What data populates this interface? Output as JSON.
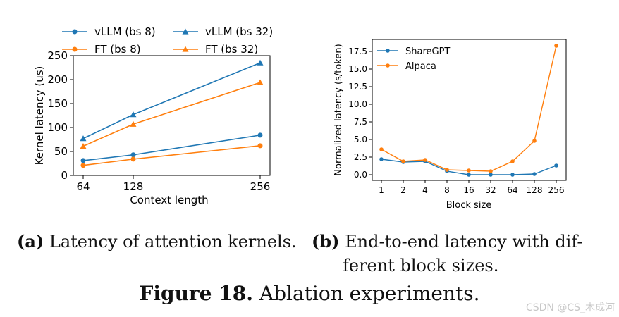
{
  "chart_data": [
    {
      "type": "line",
      "title": "",
      "xlabel": "Context length",
      "ylabel": "Kernel latency (us)",
      "categories": [
        "64",
        "128",
        "256"
      ],
      "x": [
        64,
        128,
        256
      ],
      "ylim": [
        0,
        250
      ],
      "yticks": [
        0,
        50,
        100,
        150,
        200,
        250
      ],
      "legend": "top, 2 columns",
      "series": [
        {
          "name": "vLLM (bs 8)",
          "color": "#1f77b4",
          "marker": "circle",
          "values": [
            31,
            43,
            84
          ]
        },
        {
          "name": "FT (bs 8)",
          "color": "#ff7f0e",
          "marker": "circle",
          "values": [
            21,
            34,
            62
          ]
        },
        {
          "name": "vLLM (bs 32)",
          "color": "#1f77b4",
          "marker": "triangle",
          "values": [
            77,
            127,
            235
          ]
        },
        {
          "name": "FT (bs 32)",
          "color": "#ff7f0e",
          "marker": "triangle",
          "values": [
            61,
            107,
            194
          ]
        }
      ]
    },
    {
      "type": "line",
      "title": "",
      "xlabel": "Block size",
      "ylabel": "Normalized latency (s/token)",
      "categories": [
        "1",
        "2",
        "4",
        "8",
        "16",
        "32",
        "64",
        "128",
        "256"
      ],
      "ylim": [
        -0.8,
        19.2
      ],
      "yticks": [
        "0.0",
        "2.5",
        "5.0",
        "7.5",
        "10.0",
        "12.5",
        "15.0",
        "17.5"
      ],
      "legend": "top-left",
      "series": [
        {
          "name": "ShareGPT",
          "color": "#1f77b4",
          "marker": "circle",
          "values": [
            2.2,
            1.8,
            1.9,
            0.5,
            0.0,
            0.0,
            0.0,
            0.1,
            1.3
          ]
        },
        {
          "name": "Alpaca",
          "color": "#ff7f0e",
          "marker": "circle",
          "values": [
            3.6,
            1.9,
            2.1,
            0.7,
            0.6,
            0.5,
            1.9,
            4.8,
            18.3
          ]
        }
      ]
    }
  ],
  "captions": {
    "a_label": "(a)",
    "a_text": "Latency of attention kernels.",
    "b_label": "(b)",
    "b_text_line1": "End-to-end latency with dif-",
    "b_text_line2": "ferent block sizes.",
    "figure_label": "Figure 18.",
    "figure_text": "Ablation experiments."
  },
  "watermark": "CSDN @CS_木成河"
}
